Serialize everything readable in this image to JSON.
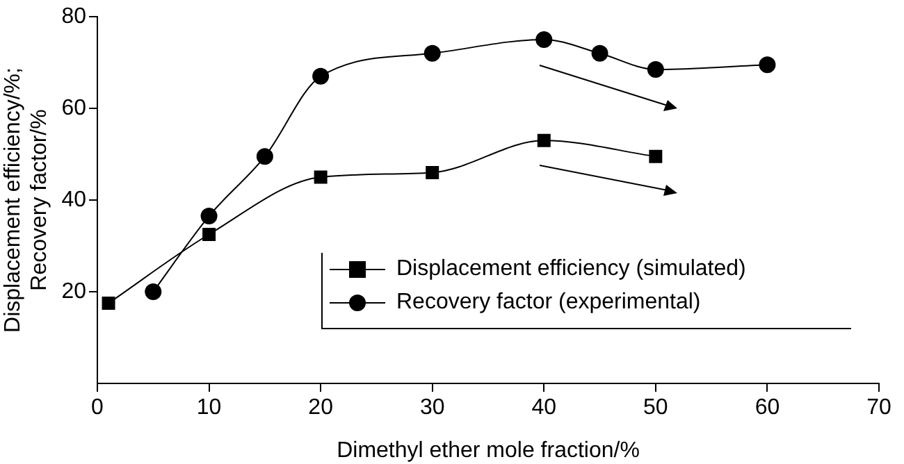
{
  "chart_data": {
    "type": "line",
    "xlabel": "Dimethyl ether mole fraction/%",
    "ylabel": "Displacement efficiency/%;\nRecovery factor/%",
    "xlim": [
      0,
      70
    ],
    "xticks": [
      0,
      10,
      20,
      30,
      40,
      50,
      60,
      70
    ],
    "ylim": [
      0,
      80
    ],
    "yticks": [
      20,
      40,
      60,
      80
    ],
    "grid": false,
    "legend": "bottom right",
    "line_style": "solid",
    "series": [
      {
        "name": "Displacement efficiency (simulated)",
        "color": "#000000",
        "marker": "square",
        "x": [
          1,
          10,
          20,
          30,
          40,
          50
        ],
        "values": [
          17.5,
          32.5,
          45,
          46,
          53,
          49.5
        ]
      },
      {
        "name": "Recovery factor (experimental)",
        "color": "#000000",
        "marker": "circle",
        "x": [
          5,
          10,
          15,
          20,
          30,
          40,
          45,
          50,
          60
        ],
        "values": [
          20,
          36.5,
          49.5,
          67,
          72,
          75,
          72,
          68.5,
          69.5
        ]
      }
    ]
  }
}
